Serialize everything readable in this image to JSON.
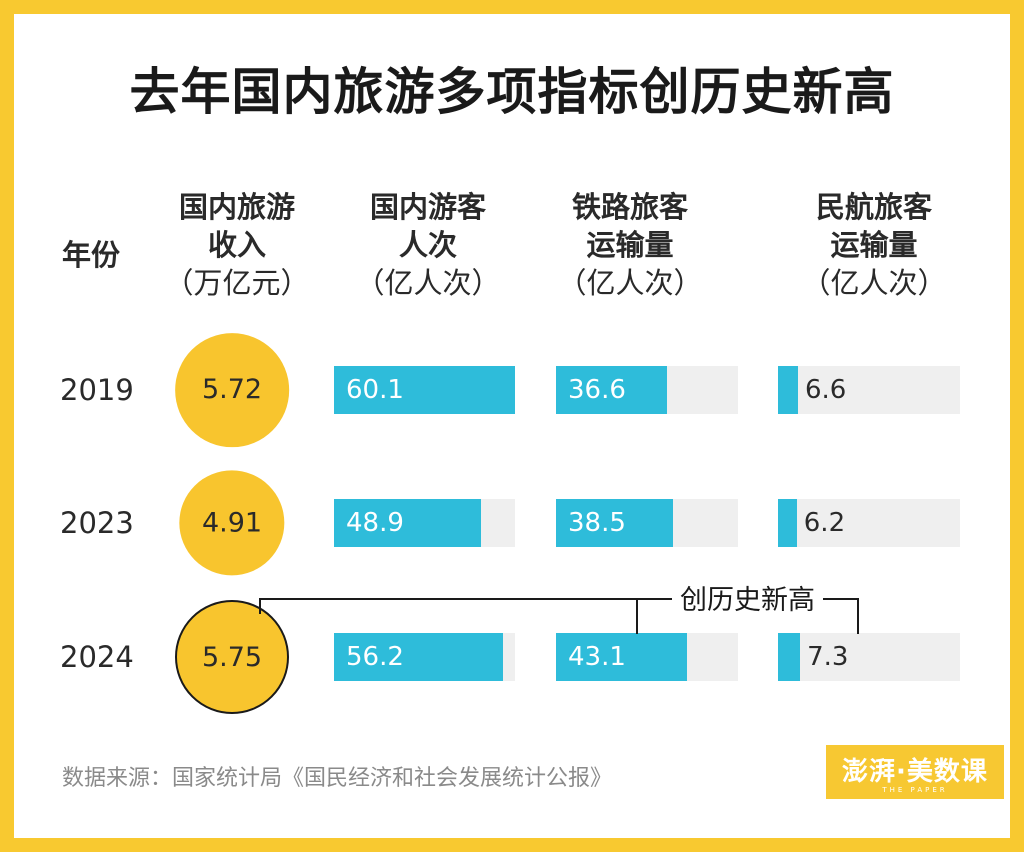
{
  "title": "去年国内旅游多项指标创历史新高",
  "year_header": "年份",
  "columns": [
    {
      "line1": "国内旅游",
      "line2": "收入",
      "unit": "（万亿元）"
    },
    {
      "line1": "国内游客",
      "line2": "人次",
      "unit": "（亿人次）"
    },
    {
      "line1": "铁路旅客",
      "line2": "运输量",
      "unit": "（亿人次）"
    },
    {
      "line1": "民航旅客",
      "line2": "运输量",
      "unit": "（亿人次）"
    }
  ],
  "callout": "创历史新高",
  "source": "数据来源：国家统计局《国民经济和社会发展统计公报》",
  "logo": {
    "main": "澎湃·美数课",
    "sub": "THE PAPER"
  },
  "colors": {
    "background": "#f8c930",
    "circle": "#f8c52e",
    "bar": "#2ebcda",
    "track": "#efefef"
  },
  "chart_data": {
    "type": "table",
    "categories": [
      "2019",
      "2023",
      "2024"
    ],
    "series": [
      {
        "name": "国内旅游收入（万亿元）",
        "values": [
          5.72,
          4.91,
          5.75
        ]
      },
      {
        "name": "国内游客人次（亿人次）",
        "values": [
          60.1,
          48.9,
          56.2
        ]
      },
      {
        "name": "铁路旅客运输量（亿人次）",
        "values": [
          36.6,
          38.5,
          43.1
        ]
      },
      {
        "name": "民航旅客运输量（亿人次）",
        "values": [
          6.6,
          6.2,
          7.3
        ]
      }
    ],
    "highlight_category": "2024",
    "highlight_series": [
      0,
      2,
      3
    ]
  }
}
